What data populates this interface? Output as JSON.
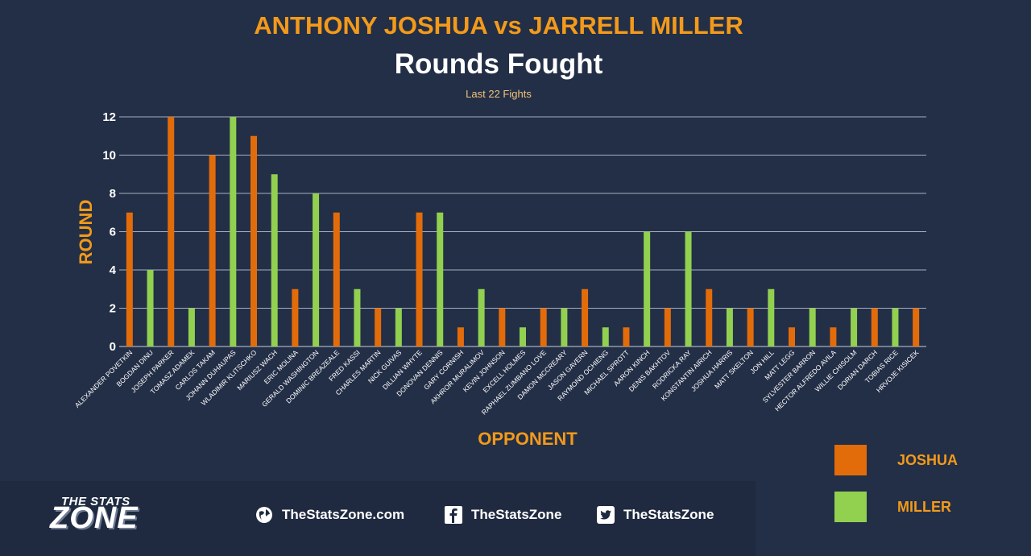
{
  "header": {
    "title": "ANTHONY JOSHUA vs JARRELL MILLER",
    "subtitle": "Rounds Fought",
    "note": "Last 22 Fights"
  },
  "legend": [
    {
      "label": "JOSHUA",
      "color": "#e36c0a"
    },
    {
      "label": "MILLER",
      "color": "#92d050"
    }
  ],
  "footer": {
    "logo_top": "THE STATS",
    "logo_main": "ZONE",
    "website": "TheStatsZone.com",
    "facebook": "TheStatsZone",
    "twitter": "TheStatsZone",
    "icons": [
      "globe-icon",
      "facebook-icon",
      "twitter-icon"
    ]
  },
  "chart_data": {
    "type": "bar",
    "xlabel": "OPPONENT",
    "ylabel": "ROUND",
    "ylim": [
      0,
      12
    ],
    "yticks": [
      0,
      2,
      4,
      6,
      8,
      10,
      12
    ],
    "grid": true,
    "legend_position": "bottom-right",
    "categories": [
      "ALEXANDER POVETKIN",
      "BOGDAN DINU",
      "JOSEPH PARKER",
      "TOMASZ ADAMEK",
      "CARLOS TAKAM",
      "JOHANN DUHAUPAS",
      "WLADIMIR KLITSCHKO",
      "MARIUSZ WACH",
      "ERIC MOLINA",
      "GERALD WASHINGTON",
      "DOMINIC BREAZEALE",
      "FRED KASSI",
      "CHARLES MARTIN",
      "NICK GUIVAS",
      "DILLIAN WHYTE",
      "DONOVAN DENNIS",
      "GARY CORNISH",
      "AKHROR MURALIMOV",
      "KEVIN JOHNSON",
      "EXCELL HOLMES",
      "RAPHAEL ZUMBANO LOVE",
      "DAMON MCCREARY",
      "JASON GAVERN",
      "RAYMOND OCHIENG",
      "MICHAEL SPROTT",
      "AARON KINCH",
      "DENIS BAKHTOV",
      "RODRICKA RAY",
      "KONSTANTIN AIRICH",
      "JOSHUA HARRIS",
      "MATT SKELTON",
      "JON HILL",
      "MATT LEGG",
      "SYLVESTER BARRON",
      "HECTOR ALFREDO AVILA",
      "WILLIE CHISOLM",
      "DORIAN DARCH",
      "TOBIAS RICE",
      "HRVOJE KISICEK"
    ],
    "fighter": [
      "JOSHUA",
      "MILLER",
      "JOSHUA",
      "MILLER",
      "JOSHUA",
      "MILLER",
      "JOSHUA",
      "MILLER",
      "JOSHUA",
      "MILLER",
      "JOSHUA",
      "MILLER",
      "JOSHUA",
      "MILLER",
      "JOSHUA",
      "MILLER",
      "JOSHUA",
      "MILLER",
      "JOSHUA",
      "MILLER",
      "JOSHUA",
      "MILLER",
      "JOSHUA",
      "MILLER",
      "JOSHUA",
      "MILLER",
      "JOSHUA",
      "MILLER",
      "JOSHUA",
      "MILLER",
      "JOSHUA",
      "MILLER",
      "JOSHUA",
      "MILLER",
      "JOSHUA",
      "MILLER",
      "JOSHUA",
      "MILLER",
      "JOSHUA"
    ],
    "values": [
      7,
      4,
      12,
      2,
      10,
      12,
      11,
      9,
      3,
      8,
      7,
      3,
      2,
      2,
      7,
      7,
      1,
      3,
      2,
      1,
      2,
      2,
      3,
      1,
      1,
      6,
      2,
      6,
      3,
      2,
      2,
      3,
      1,
      2,
      1,
      2,
      2,
      2,
      2
    ],
    "colors": {
      "JOSHUA": "#e36c0a",
      "MILLER": "#92d050"
    }
  }
}
